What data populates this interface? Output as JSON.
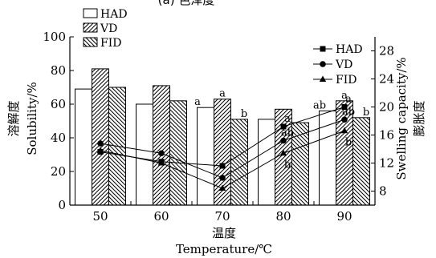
{
  "chart_data": {
    "type": "bar",
    "title": "(a) 色泽度",
    "categories": [
      "50",
      "60",
      "70",
      "80",
      "90"
    ],
    "bar_series": [
      {
        "name": "HAD",
        "values": [
          69,
          60,
          58,
          51,
          56
        ],
        "pattern": "none"
      },
      {
        "name": "VD",
        "values": [
          81,
          71,
          63,
          57,
          62
        ],
        "pattern": "hatch-forward"
      },
      {
        "name": "FID",
        "values": [
          70,
          62,
          51,
          49,
          52
        ],
        "pattern": "hatch-back"
      }
    ],
    "bar_labels": [
      [
        null,
        null,
        "a",
        null,
        "ab"
      ],
      [
        null,
        null,
        "a",
        null,
        "a"
      ],
      [
        null,
        null,
        "b",
        null,
        "b"
      ]
    ],
    "line_series": [
      {
        "name": "HAD",
        "marker": "square",
        "values": [
          13.6,
          12.2,
          11.6,
          17.2,
          20.0
        ]
      },
      {
        "name": "VD",
        "marker": "circle",
        "values": [
          14.8,
          13.4,
          9.9,
          15.2,
          18.2
        ]
      },
      {
        "name": "FID",
        "marker": "triangle",
        "values": [
          13.8,
          12.0,
          8.4,
          13.4,
          16.6
        ]
      }
    ],
    "line_labels": [
      [
        null,
        null,
        null,
        "a",
        "a"
      ],
      [
        null,
        null,
        null,
        "ab",
        "ab"
      ],
      [
        null,
        null,
        null,
        "b",
        "b"
      ]
    ],
    "y_left": {
      "label_cn": "溶解度",
      "label_en": "Solubility/%",
      "lim": [
        0,
        100
      ],
      "ticks": [
        0,
        20,
        40,
        60,
        80,
        100
      ]
    },
    "y_right": {
      "label_cn": "膨胀度",
      "label_en": "Swelling capacity/%",
      "lim": [
        6,
        30
      ],
      "ticks": [
        8,
        12,
        16,
        20,
        24,
        28
      ]
    },
    "x_axis": {
      "label_cn": "温度",
      "label_en": "Temperature/℃"
    },
    "legend_bars": [
      "HAD",
      "VD",
      "FID"
    ],
    "legend_lines": [
      "HAD",
      "VD",
      "FID"
    ],
    "grid": false
  }
}
